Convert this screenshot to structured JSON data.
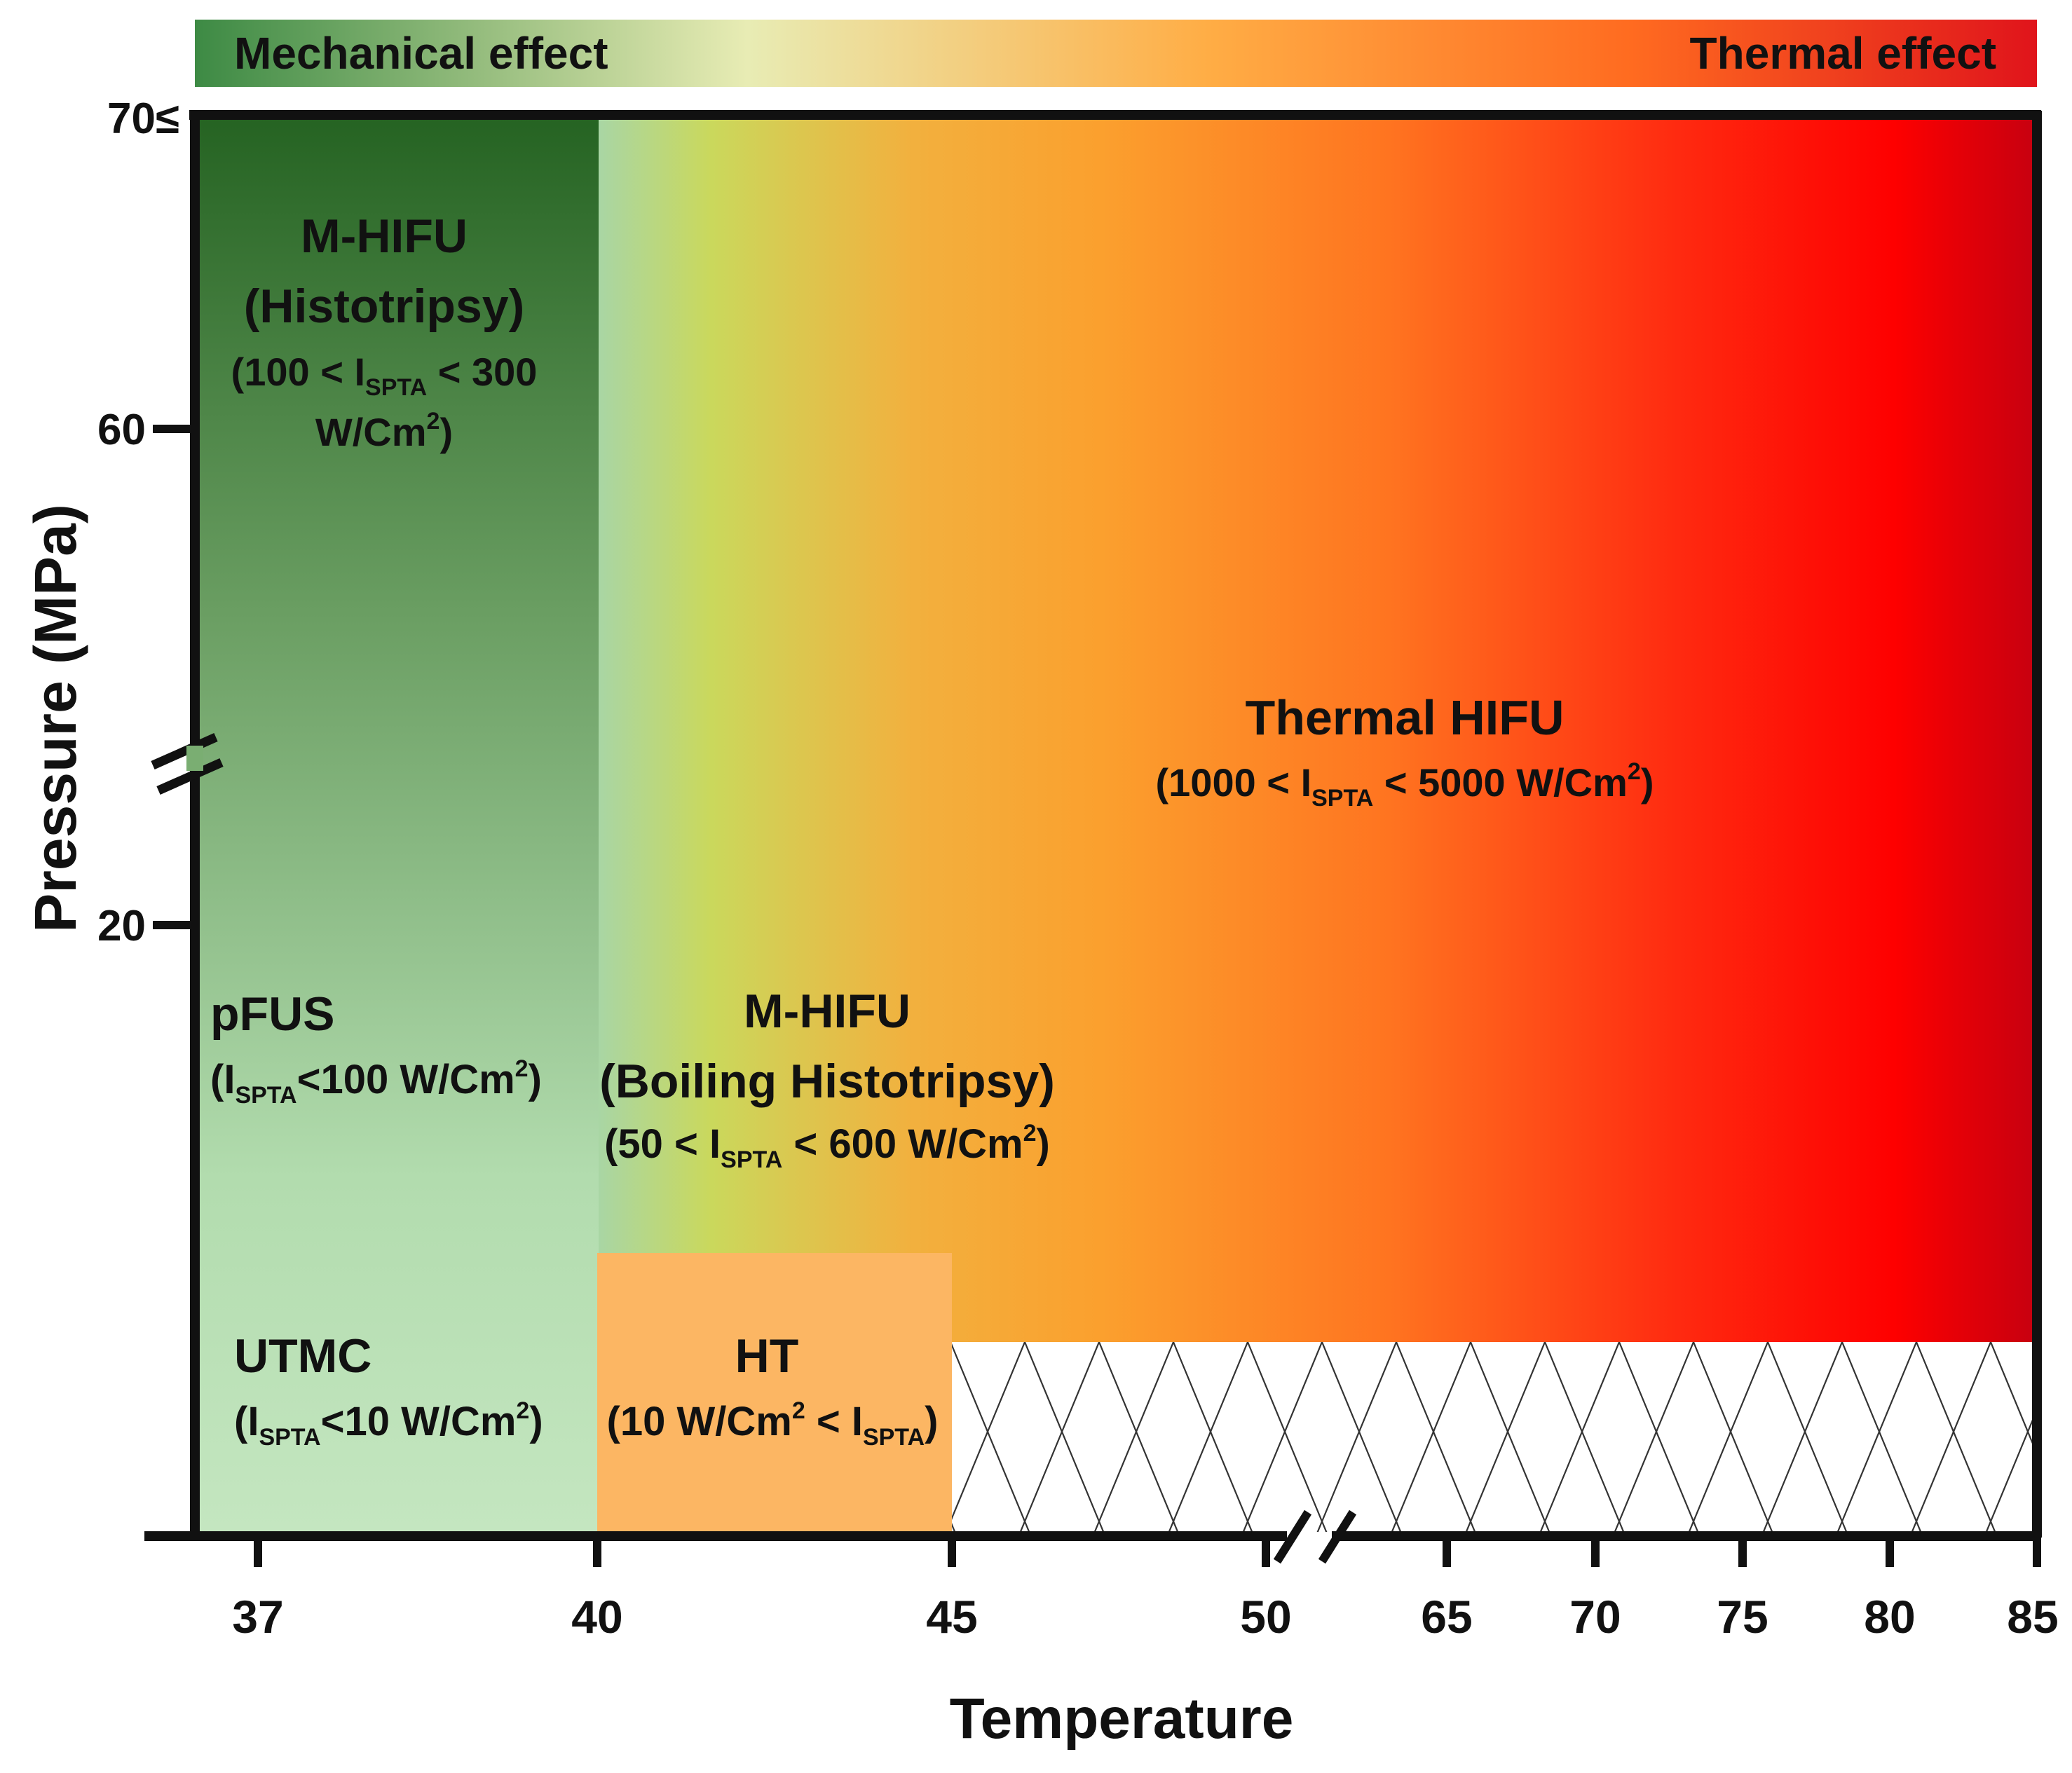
{
  "top_bar": {
    "left_label": "Mechanical effect",
    "right_label": "Thermal effect",
    "colors": [
      "#3d8a44",
      "#e6e8a8",
      "#ffb347",
      "#ff6a1a",
      "#e0141b"
    ]
  },
  "y_axis": {
    "label": "Pressure (MPa)",
    "ticks": [
      "70≤",
      "60",
      "20"
    ]
  },
  "x_axis": {
    "label": "Temperature",
    "ticks": [
      "37",
      "40",
      "45",
      "50",
      "65",
      "70",
      "75",
      "80",
      "85"
    ]
  },
  "regions": {
    "m_hifu_histotripsy": {
      "title": "M-HIFU",
      "subtitle": "(Histotripsy)",
      "intensity_open": "(100 < I",
      "intensity_sub": "SPTA",
      "intensity_close": " < 300",
      "intensity_unit_a": "W/Cm",
      "intensity_unit_sup": "2",
      "intensity_unit_b": ")"
    },
    "pfus": {
      "title": "pFUS",
      "i_open": "(I",
      "i_sub": "SPTA",
      "i_mid": "<100 W/Cm",
      "i_sup": "2",
      "i_close": ")"
    },
    "utmc": {
      "title": "UTMC",
      "i_open": "(I",
      "i_sub": "SPTA",
      "i_mid": "<10 W/Cm",
      "i_sup": "2",
      "i_close": ")"
    },
    "m_hifu_boiling": {
      "title": "M-HIFU",
      "subtitle": "(Boiling Histotripsy)",
      "i_open": "(50 < I",
      "i_sub": "SPTA",
      "i_mid": " < 600 W/Cm",
      "i_sup": "2",
      "i_close": ")"
    },
    "ht": {
      "title": "HT",
      "i_open": "(10 W/Cm",
      "i_sup": "2",
      "i_mid": " < I",
      "i_sub": "SPTA",
      "i_close": ")"
    },
    "thermal_hifu": {
      "title": "Thermal HIFU",
      "i_open": "(1000 < I",
      "i_sub": "SPTA",
      "i_mid": " < 5000 W/Cm",
      "i_sup": "2",
      "i_close": ")"
    }
  },
  "colors": {
    "dark_green": "#2a6a2a",
    "light_green": "#bfe3bb",
    "ht_orange": "#fcb663",
    "thermal_red": "#d4000a"
  }
}
